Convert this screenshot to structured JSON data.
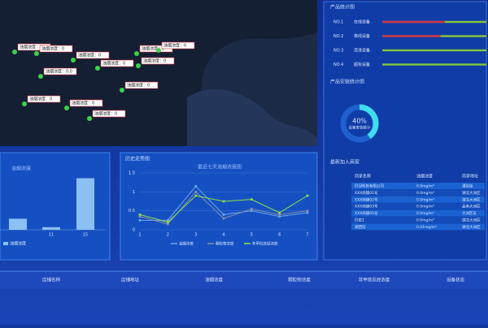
{
  "map": {
    "markers": [
      "油烟浓度：0",
      "油烟浓度：0",
      "油烟浓度：0",
      "油烟浓度：0.0",
      "油烟浓度：0",
      "油烟浓度：0",
      "油烟浓度：0",
      "油烟浓度：0",
      "油烟浓度：0",
      "油烟浓度：0",
      "油烟浓度：0",
      "油烟浓度：0"
    ]
  },
  "chart_data": [
    {
      "type": "bar",
      "title": "油烟浓度",
      "categories": [
        null,
        "11",
        "15"
      ],
      "series": [
        {
          "name": "油烟浓度",
          "color": "#8cc0f2",
          "values": [
            0.3,
            0.07,
            1.4
          ]
        }
      ],
      "ylim": [
        0,
        1.5
      ]
    },
    {
      "type": "line",
      "panel_title": "历史走势图",
      "title": "最近七天油烟浓度图",
      "x": [
        1,
        2,
        3,
        4,
        5,
        6,
        7
      ],
      "xlim": [
        1,
        7
      ],
      "ylim": [
        0,
        1.5
      ],
      "yticks": [
        0,
        0.5,
        1,
        1.5
      ],
      "grid": true,
      "series": [
        {
          "name": "油烟浓度",
          "color": "#6fa8e8",
          "values": [
            0.25,
            0.25,
            1.15,
            0.4,
            0.5,
            0.35,
            0.45
          ]
        },
        {
          "name": "颗粒物浓度",
          "color": "#8a8fa8",
          "values": [
            0.35,
            0.15,
            1.0,
            0.3,
            0.55,
            0.4,
            0.5
          ]
        },
        {
          "name": "非甲烷总烃浓度",
          "color": "#8ee04a",
          "values": [
            0.4,
            0.2,
            0.9,
            0.75,
            0.8,
            0.45,
            0.9
          ]
        }
      ]
    },
    {
      "type": "donut",
      "title": "产品安装统计图",
      "values": [
        40
      ],
      "value_labels": [
        "40%"
      ],
      "label": "设备安装统计",
      "xlim": [
        0,
        100
      ],
      "color": "#3fdcf0",
      "track_color": "#1f5fd0"
    },
    {
      "type": "progress",
      "title": "产品统计图",
      "labels": [
        "NO.1",
        "NO.2",
        "NO.3",
        "NO.4"
      ],
      "categories": [
        "在线设备",
        "离线设备",
        "清洗设备",
        "超标设备"
      ],
      "values": [
        60,
        56,
        0,
        0
      ],
      "xlim": [
        0,
        100
      ],
      "color": "#d0304a",
      "track_color": "#86c83c"
    }
  ],
  "merchants": {
    "title": "最新加入商家",
    "columns": [
      "商家名称",
      "油烟浓度",
      "商家地址"
    ],
    "rows": [
      [
        "仍冠科技有限公司",
        "0.0mg/m³",
        "漕县街"
      ],
      [
        "XXX商铺01号",
        "0.0mg/m³",
        "湖北大洲区"
      ],
      [
        "XXX商铺02号",
        "0.0mg/m³",
        "湖北大洲区"
      ],
      [
        "XXX商铺03号",
        "0.0mg/m³",
        "晶美大洲区"
      ],
      [
        "XXX商铺05号",
        "0.0mg/m³",
        "大洲区东"
      ],
      [
        "仍宏1",
        "0.0mg/m³",
        "湖北大洲区"
      ],
      [
        "湖西馆",
        "0.01mg/m³",
        "湖北大洲区"
      ]
    ]
  },
  "shop_table": {
    "columns": [
      "店铺名称",
      "店铺地址",
      "油烟浓度",
      "颗粒物浓度",
      "非甲烷总烃浓度",
      "设备状态"
    ]
  }
}
